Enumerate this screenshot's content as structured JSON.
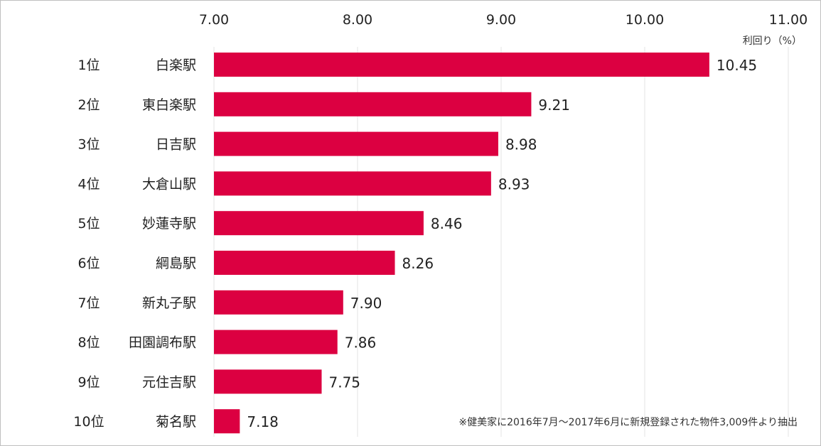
{
  "chart_data": {
    "type": "bar",
    "orientation": "horizontal",
    "xlabel": "利回り（%）",
    "xlim": [
      7.0,
      11.0
    ],
    "xticks": [
      "7.00",
      "8.00",
      "9.00",
      "10.00",
      "11.00"
    ],
    "grid": true,
    "ranks": [
      "1位",
      "2位",
      "3位",
      "4位",
      "5位",
      "6位",
      "7位",
      "8位",
      "9位",
      "10位"
    ],
    "categories": [
      "白楽駅",
      "東白楽駅",
      "日吉駅",
      "大倉山駅",
      "妙蓮寺駅",
      "綱島駅",
      "新丸子駅",
      "田園調布駅",
      "元住吉駅",
      "菊名駅"
    ],
    "values": [
      10.45,
      9.21,
      8.98,
      8.93,
      8.46,
      8.26,
      7.9,
      7.86,
      7.75,
      7.18
    ],
    "value_labels": [
      "10.45",
      "9.21",
      "8.98",
      "8.93",
      "8.46",
      "8.26",
      "7.90",
      "7.86",
      "7.75",
      "7.18"
    ],
    "bar_color": "#dc0041",
    "footnote": "※健美家に2016年7月～2017年6月に新規登録された物件3,009件より抽出"
  }
}
